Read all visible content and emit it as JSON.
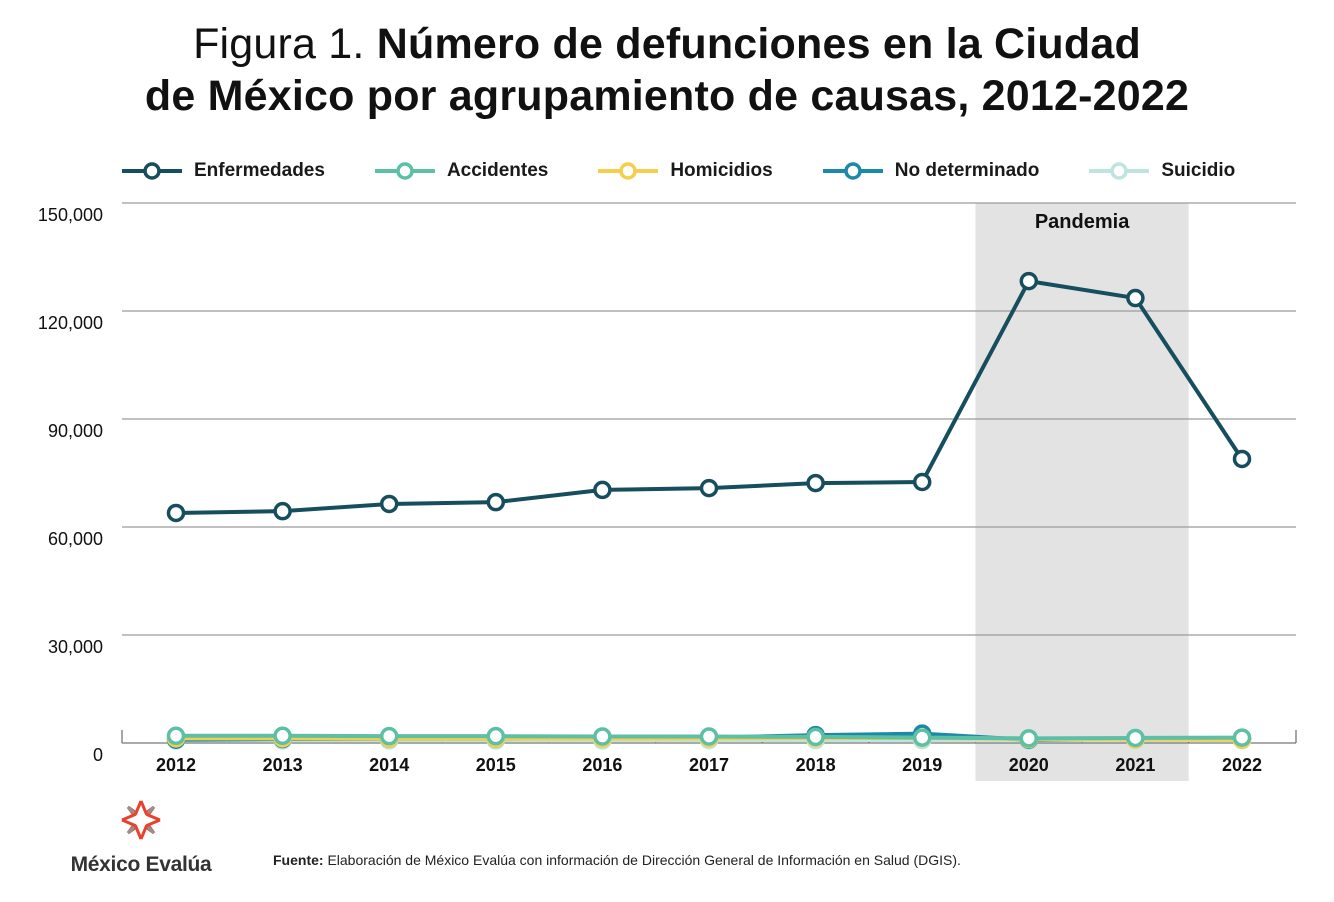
{
  "title": {
    "prefix": "Figura 1.",
    "line1_bold": "Número de defunciones en la Ciudad",
    "line2_bold": "de México por agrupamiento de causas, 2012-2022"
  },
  "chart_data": {
    "type": "line",
    "title": "Figura 1. Número de defunciones en la Ciudad de México por agrupamiento de causas, 2012-2022",
    "xlabel": "",
    "ylabel": "",
    "x": [
      "2012",
      "2013",
      "2014",
      "2015",
      "2016",
      "2017",
      "2018",
      "2019",
      "2020",
      "2021",
      "2022"
    ],
    "ylim": [
      0,
      150000
    ],
    "yticks": [
      0,
      30000,
      60000,
      90000,
      120000,
      150000
    ],
    "ytick_labels": [
      "0",
      "30,000",
      "60,000",
      "90,000",
      "120,000",
      "150,000"
    ],
    "grid": true,
    "legend_position": "top",
    "annotation": {
      "label": "Pandemia",
      "x_start": "2019.5",
      "x_end": "2021.5",
      "color": "#e3e3e3"
    },
    "series": [
      {
        "name": "Enfermedades",
        "color": "#164e5e",
        "values": [
          63900,
          64400,
          66400,
          66900,
          70300,
          70800,
          72200,
          72500,
          128300,
          123600,
          78900
        ]
      },
      {
        "name": "Accidentes",
        "color": "#5dbfa5",
        "values": [
          2000,
          2000,
          1900,
          1900,
          1800,
          1800,
          1700,
          1500,
          1300,
          1400,
          1500
        ]
      },
      {
        "name": "Homicidios",
        "color": "#f5cf4c",
        "values": [
          1300,
          1300,
          1200,
          1200,
          1200,
          1300,
          1400,
          1400,
          1100,
          1000,
          900
        ]
      },
      {
        "name": "No determinado",
        "color": "#1b8aa8",
        "values": [
          900,
          1100,
          1200,
          1200,
          1400,
          1500,
          2200,
          2600,
          900,
          1300,
          1300
        ]
      },
      {
        "name": "Suicidio",
        "color": "#bfe3df",
        "values": [
          700,
          700,
          700,
          700,
          700,
          800,
          800,
          800,
          700,
          800,
          800
        ]
      }
    ]
  },
  "logo": {
    "name": "México Evalúa"
  },
  "source": {
    "label": "Fuente:",
    "text": " Elaboración de México Evalúa con información de Dirección General de Información en Salud (DGIS)."
  }
}
